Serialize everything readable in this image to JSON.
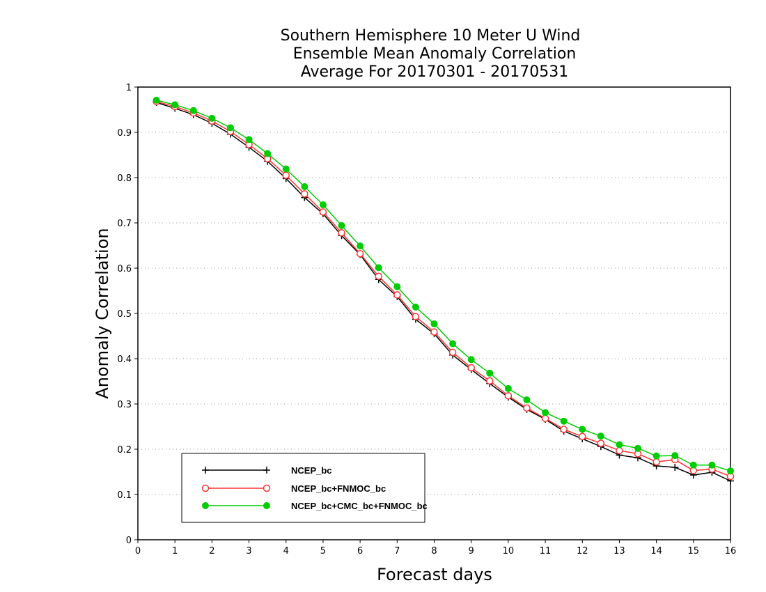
{
  "chart_data": {
    "type": "line",
    "title_lines": [
      "Southern Hemisphere 10 Meter U Wind",
      "Ensemble Mean Anomaly Correlation",
      "Average For 20170301 - 20170531"
    ],
    "xlabel": "Forecast days",
    "ylabel": "Anomaly Correlation",
    "xlim": [
      0,
      16
    ],
    "ylim": [
      0,
      1
    ],
    "x_ticks": [
      "0",
      "1",
      "2",
      "3",
      "4",
      "5",
      "6",
      "7",
      "8",
      "9",
      "10",
      "11",
      "12",
      "13",
      "14",
      "15",
      "16"
    ],
    "y_ticks": [
      "0",
      "0.1",
      "0.2",
      "0.3",
      "0.4",
      "0.5",
      "0.6",
      "0.7",
      "0.8",
      "0.9",
      "1"
    ],
    "grid": true,
    "legend_position": "bottom-left",
    "x": [
      0.5,
      1,
      1.5,
      2,
      2.5,
      3,
      3.5,
      4,
      4.5,
      5,
      5.5,
      6,
      6.5,
      7,
      7.5,
      8,
      8.5,
      9,
      9.5,
      10,
      10.5,
      11,
      11.5,
      12,
      12.5,
      13,
      13.5,
      14,
      14.5,
      15,
      15.5,
      16
    ],
    "series": [
      {
        "name": "NCEP_bc",
        "color": "#000000",
        "marker": "plus",
        "values": [
          0.966,
          0.953,
          0.939,
          0.92,
          0.896,
          0.867,
          0.836,
          0.798,
          0.756,
          0.72,
          0.672,
          0.63,
          0.575,
          0.537,
          0.487,
          0.455,
          0.408,
          0.376,
          0.345,
          0.315,
          0.288,
          0.266,
          0.24,
          0.223,
          0.206,
          0.187,
          0.181,
          0.163,
          0.16,
          0.143,
          0.149,
          0.13
        ]
      },
      {
        "name": "NCEP_bc+FNMOC_bc",
        "color": "#ff3333",
        "marker": "open-circle",
        "values": [
          0.968,
          0.957,
          0.943,
          0.925,
          0.902,
          0.873,
          0.842,
          0.805,
          0.764,
          0.724,
          0.678,
          0.632,
          0.582,
          0.541,
          0.493,
          0.459,
          0.414,
          0.38,
          0.351,
          0.318,
          0.291,
          0.268,
          0.244,
          0.228,
          0.213,
          0.197,
          0.19,
          0.172,
          0.177,
          0.153,
          0.156,
          0.14
        ]
      },
      {
        "name": "NCEP_bc+CMC_bc+FNMOC_bc",
        "color": "#00cc00",
        "marker": "filled-circle",
        "values": [
          0.971,
          0.961,
          0.948,
          0.931,
          0.91,
          0.884,
          0.853,
          0.819,
          0.78,
          0.74,
          0.694,
          0.649,
          0.601,
          0.559,
          0.514,
          0.477,
          0.433,
          0.398,
          0.368,
          0.334,
          0.309,
          0.281,
          0.262,
          0.244,
          0.229,
          0.21,
          0.202,
          0.185,
          0.186,
          0.165,
          0.165,
          0.152
        ]
      }
    ]
  }
}
